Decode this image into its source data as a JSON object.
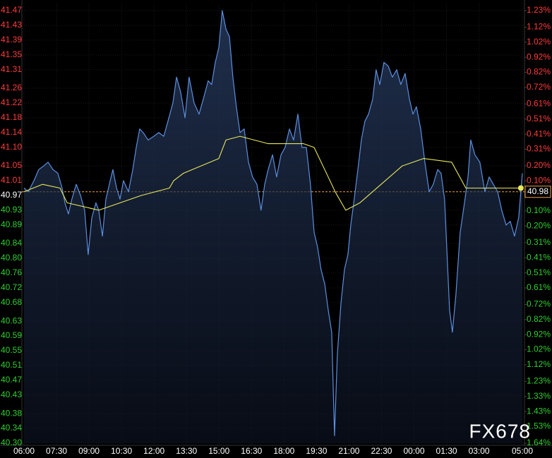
{
  "chart_data": {
    "type": "line",
    "xlim": [
      0,
      23
    ],
    "xticks": [
      {
        "value": 0,
        "label": "06:00"
      },
      {
        "value": 1.5,
        "label": "07:30"
      },
      {
        "value": 3,
        "label": "09:00"
      },
      {
        "value": 4.5,
        "label": "10:30"
      },
      {
        "value": 6,
        "label": "12:00"
      },
      {
        "value": 7.5,
        "label": "13:30"
      },
      {
        "value": 9,
        "label": "15:00"
      },
      {
        "value": 10.5,
        "label": "16:30"
      },
      {
        "value": 12,
        "label": "18:00"
      },
      {
        "value": 13.5,
        "label": "19:30"
      },
      {
        "value": 15,
        "label": "21:00"
      },
      {
        "value": 16.5,
        "label": "22:30"
      },
      {
        "value": 18,
        "label": "00:00"
      },
      {
        "value": 19.5,
        "label": "01:30"
      },
      {
        "value": 21,
        "label": "03:00"
      },
      {
        "value": 23,
        "label": "05:00"
      }
    ],
    "ylim": [
      40.3,
      41.47
    ],
    "yticks": [
      41.47,
      41.43,
      41.39,
      41.35,
      41.31,
      41.26,
      41.22,
      41.18,
      41.14,
      {
        "value": 41.1,
        "label": "41.10"
      },
      41.05,
      41.01,
      40.97,
      40.93,
      40.89,
      40.84,
      {
        "value": 40.8,
        "label": "40.80"
      },
      40.76,
      40.72,
      40.68,
      40.63,
      40.59,
      40.55,
      40.51,
      40.47,
      40.43,
      40.38,
      40.34,
      {
        "value": 40.3,
        "label": "40.30"
      }
    ],
    "y2lim": [
      -1.64,
      1.23
    ],
    "y2ticks": [
      {
        "value": 1.23,
        "label": "1.23%"
      },
      {
        "value": 1.12,
        "label": "1.12%"
      },
      {
        "value": 1.02,
        "label": "1.02%"
      },
      {
        "value": 0.92,
        "label": "0.92%"
      },
      {
        "value": 0.82,
        "label": "0.82%"
      },
      {
        "value": 0.72,
        "label": "0.72%"
      },
      {
        "value": 0.61,
        "label": "0.61%"
      },
      {
        "value": 0.51,
        "label": "0.51%"
      },
      {
        "value": 0.41,
        "label": "0.41%"
      },
      {
        "value": 0.31,
        "label": "0.31%"
      },
      {
        "value": 0.2,
        "label": "0.20%"
      },
      {
        "value": 0.1,
        "label": "0.10%"
      },
      {
        "value": -0.1,
        "label": "0.10%"
      },
      {
        "value": -0.2,
        "label": "0.20%"
      },
      {
        "value": -0.31,
        "label": "0.31%"
      },
      {
        "value": -0.41,
        "label": "0.41%"
      },
      {
        "value": -0.51,
        "label": "0.51%"
      },
      {
        "value": -0.61,
        "label": "0.61%"
      },
      {
        "value": -0.72,
        "label": "0.72%"
      },
      {
        "value": -0.82,
        "label": "0.82%"
      },
      {
        "value": -0.92,
        "label": "0.92%"
      },
      {
        "value": -1.02,
        "label": "1.02%"
      },
      {
        "value": -1.12,
        "label": "1.12%"
      },
      {
        "value": -1.23,
        "label": "1.23%"
      },
      {
        "value": -1.33,
        "label": "1.33%"
      },
      {
        "value": -1.43,
        "label": "1.43%"
      },
      {
        "value": -1.53,
        "label": "1.53%"
      },
      {
        "value": -1.64,
        "label": "1.64%"
      }
    ],
    "up_color": "#ff3b3b",
    "down_color": "#2fcf2f",
    "grid": true,
    "last_price": 40.98,
    "last_price_color": "#f0a040",
    "watermark": "FX678",
    "series": [
      {
        "color": "#5b8fe0",
        "fill": true,
        "x": [
          0,
          0.2,
          0.46,
          0.68,
          0.91,
          1.11,
          1.34,
          1.56,
          1.76,
          1.89,
          2.05,
          2.21,
          2.41,
          2.61,
          2.8,
          2.96,
          3.13,
          3.32,
          3.45,
          3.62,
          3.78,
          3.94,
          4.1,
          4.27,
          4.43,
          4.59,
          4.82,
          5.02,
          5.18,
          5.34,
          5.5,
          5.73,
          5.99,
          6.22,
          6.45,
          6.64,
          6.87,
          7.04,
          7.23,
          7.43,
          7.62,
          7.85,
          8.08,
          8.27,
          8.5,
          8.66,
          8.83,
          8.99,
          9.15,
          9.32,
          9.48,
          9.64,
          9.8,
          9.97,
          10.16,
          10.36,
          10.55,
          10.75,
          10.94,
          11.11,
          11.27,
          11.47,
          11.66,
          11.86,
          12.05,
          12.25,
          12.44,
          12.64,
          12.83,
          13.03,
          13.22,
          13.39,
          13.55,
          13.71,
          13.88,
          14.04,
          14.2,
          14.33,
          14.46,
          14.63,
          14.79,
          14.95,
          15.08,
          15.24,
          15.41,
          15.57,
          15.73,
          15.9,
          16.09,
          16.25,
          16.42,
          16.61,
          16.81,
          17,
          17.2,
          17.39,
          17.59,
          17.79,
          17.95,
          18.11,
          18.31,
          18.5,
          18.7,
          18.89,
          19.09,
          19.25,
          19.41,
          19.51,
          19.64,
          19.77,
          19.93,
          20.13,
          20.33,
          20.49,
          20.62,
          20.81,
          21.04,
          21.27,
          21.47,
          21.66,
          21.86,
          22.05,
          22.25,
          22.44,
          22.64,
          22.83,
          23
        ],
        "values": [
          40.99,
          40.98,
          41.01,
          41.04,
          41.05,
          41.06,
          41.04,
          41.03,
          40.99,
          40.95,
          40.92,
          40.96,
          41,
          40.97,
          40.93,
          40.81,
          40.91,
          40.95,
          40.93,
          40.86,
          40.96,
          41,
          41.04,
          40.99,
          40.96,
          41.01,
          40.98,
          41.04,
          41.1,
          41.15,
          41.14,
          41.12,
          41.13,
          41.14,
          41.13,
          41.17,
          41.22,
          41.29,
          41.25,
          41.18,
          41.29,
          41.22,
          41.19,
          41.23,
          41.28,
          41.27,
          41.33,
          41.37,
          41.47,
          41.42,
          41.4,
          41.29,
          41.21,
          41.14,
          41.15,
          41.06,
          41.02,
          41,
          40.93,
          41,
          41.04,
          41.08,
          41.02,
          41.08,
          41.1,
          41.15,
          41.12,
          41.19,
          41.1,
          41.1,
          41,
          40.87,
          40.83,
          40.77,
          40.73,
          40.66,
          40.6,
          40.32,
          40.54,
          40.68,
          40.77,
          40.81,
          40.89,
          40.96,
          41.04,
          41.12,
          41.17,
          41.19,
          41.23,
          41.31,
          41.27,
          41.33,
          41.32,
          41.29,
          41.31,
          41.27,
          41.3,
          41.23,
          41.19,
          41.21,
          41.15,
          41.06,
          40.98,
          41,
          41.04,
          41.03,
          40.96,
          40.83,
          40.66,
          40.6,
          40.7,
          40.87,
          40.95,
          41.02,
          41.12,
          41.08,
          41.06,
          40.98,
          41.02,
          41,
          40.98,
          40.93,
          40.89,
          40.9,
          40.86,
          40.91,
          41.03
        ]
      },
      {
        "color": "#e8e85a",
        "fill": false,
        "end_dot": true,
        "x": [
          0,
          0.85,
          1.66,
          1.99,
          3.45,
          5.41,
          6.71,
          6.91,
          7.36,
          8.99,
          9.32,
          9.97,
          10.62,
          11.27,
          12.9,
          13.39,
          14.04,
          14.36,
          14.85,
          15.5,
          16.48,
          17.46,
          18.44,
          19.74,
          20.39,
          21.69,
          22.93
        ],
        "values": [
          40.98,
          41,
          40.99,
          40.95,
          40.93,
          40.97,
          40.99,
          41.01,
          41.03,
          41.07,
          41.12,
          41.13,
          41.12,
          41.11,
          41.11,
          41.1,
          41.02,
          40.98,
          40.93,
          40.95,
          41,
          41.05,
          41.07,
          41.06,
          40.99,
          40.99,
          40.99
        ]
      }
    ]
  }
}
